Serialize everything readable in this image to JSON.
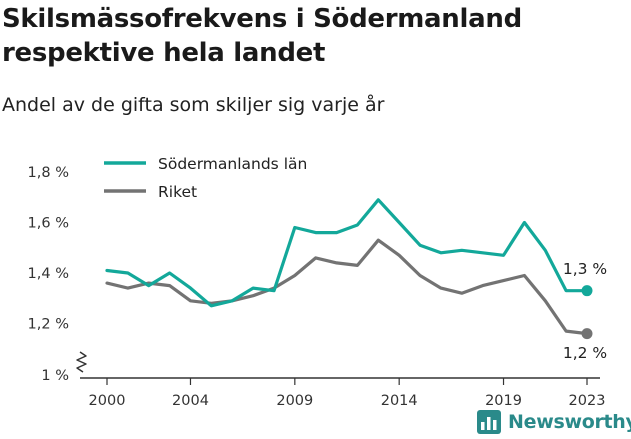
{
  "colors": {
    "sodermanland": "#13a89a",
    "riket": "#737373",
    "axis": "#333333",
    "logo": "#2a8a8a"
  },
  "logo_text": "Newsworthy",
  "chart_data": {
    "type": "line",
    "title": "Skilsmässofrekvens i Södermanland respektive hela landet",
    "subtitle": "Andel av de gifta som skiljer sig varje år",
    "xlabel": "",
    "ylabel": "",
    "ylim": [
      1.0,
      1.8
    ],
    "y_axis_break": true,
    "grid": false,
    "legend_position": "top-left",
    "y_ticks": [
      {
        "value": 1.0,
        "label": "1 %"
      },
      {
        "value": 1.2,
        "label": "1,2 %"
      },
      {
        "value": 1.4,
        "label": "1,4 %"
      },
      {
        "value": 1.6,
        "label": "1,6 %"
      },
      {
        "value": 1.8,
        "label": "1,8 %"
      }
    ],
    "x_ticks": [
      2000,
      2004,
      2009,
      2014,
      2019,
      2023
    ],
    "x": [
      2000,
      2001,
      2002,
      2003,
      2004,
      2005,
      2006,
      2007,
      2008,
      2009,
      2010,
      2011,
      2012,
      2013,
      2014,
      2015,
      2016,
      2017,
      2018,
      2019,
      2020,
      2021,
      2022,
      2023
    ],
    "series": [
      {
        "name": "Södermanlands län",
        "values": [
          1.41,
          1.4,
          1.35,
          1.4,
          1.34,
          1.27,
          1.29,
          1.34,
          1.33,
          1.58,
          1.56,
          1.56,
          1.59,
          1.69,
          1.6,
          1.51,
          1.48,
          1.49,
          1.48,
          1.47,
          1.6,
          1.49,
          1.33,
          1.33
        ],
        "end_label": "1,3 %"
      },
      {
        "name": "Riket",
        "values": [
          1.36,
          1.34,
          1.36,
          1.35,
          1.29,
          1.28,
          1.29,
          1.31,
          1.34,
          1.39,
          1.46,
          1.44,
          1.43,
          1.53,
          1.47,
          1.39,
          1.34,
          1.32,
          1.35,
          1.37,
          1.39,
          1.29,
          1.17,
          1.16
        ],
        "end_label": "1,2 %"
      }
    ]
  }
}
